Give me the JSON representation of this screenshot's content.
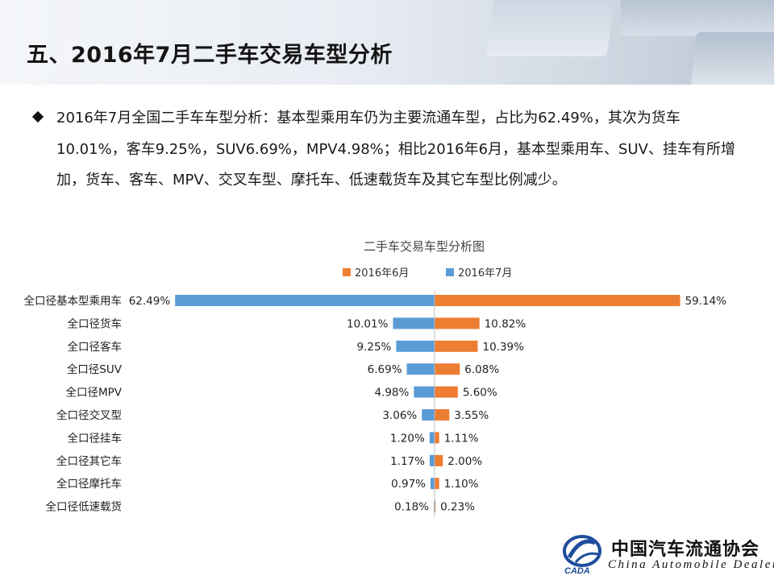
{
  "header": {
    "title": "五、2016年7月二手车交易车型分析"
  },
  "bullet": {
    "text": "2016年7月全国二手车车型分析：基本型乘用车仍为主要流通车型，占比为62.49%，其次为货车10.01%，客车9.25%，SUV6.69%，MPV4.98%；相比2016年6月，基本型乘用车、SUV、挂车有所增加，货车、客车、MPV、交叉车型、摩托车、低速载货车及其它车型比例减少。"
  },
  "chart_data": {
    "type": "bar",
    "orientation": "horizontal-diverging",
    "title": "二手车交易车型分析图",
    "legend_position": "top",
    "categories": [
      "全口径基本型乘用车",
      "全口径货车",
      "全口径客车",
      "全口径SUV",
      "全口径MPV",
      "全口径交叉型",
      "全口径挂车",
      "全口径其它车",
      "全口径摩托车",
      "全口径低速载货"
    ],
    "series": [
      {
        "name": "2016年6月",
        "color": "#ed7d31",
        "side": "right",
        "values": [
          59.14,
          10.82,
          10.39,
          6.08,
          5.6,
          3.55,
          1.11,
          2.0,
          1.1,
          0.23
        ],
        "labels": [
          "59.14%",
          "10.82%",
          "10.39%",
          "6.08%",
          "5.60%",
          "3.55%",
          "1.11%",
          "2.00%",
          "1.10%",
          "0.23%"
        ]
      },
      {
        "name": "2016年7月",
        "color": "#5b9bd5",
        "side": "left",
        "values": [
          62.49,
          10.01,
          9.25,
          6.69,
          4.98,
          3.06,
          1.2,
          1.17,
          0.97,
          0.18
        ],
        "labels": [
          "62.49%",
          "10.01%",
          "9.25%",
          "6.69%",
          "4.98%",
          "3.06%",
          "1.20%",
          "1.17%",
          "0.97%",
          "0.18%"
        ]
      }
    ],
    "unit": "%",
    "grid": false
  },
  "footer": {
    "org_cn": "中国汽车流通协会",
    "org_en": "China  Automobile Dealers",
    "logo_text": "CADA"
  }
}
